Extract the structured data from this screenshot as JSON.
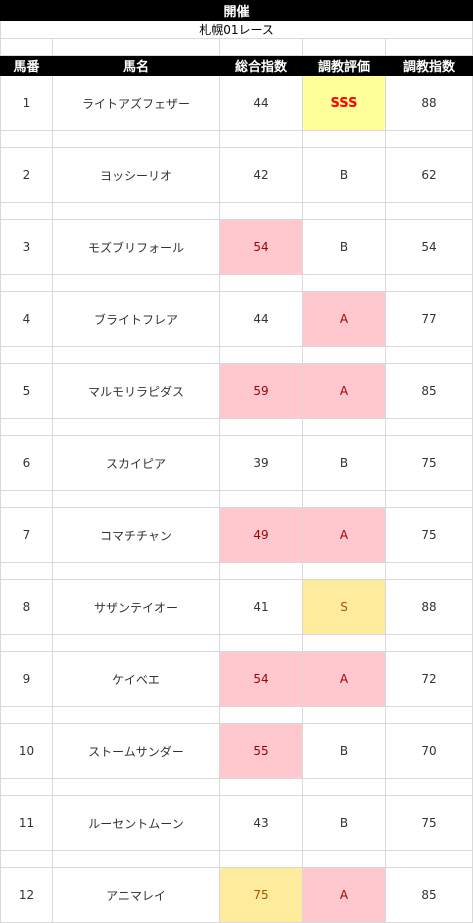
{
  "title": "開催",
  "race": "札幌01レース",
  "headers": [
    "馬番",
    "馬名",
    "総合指数",
    "調教評価",
    "調教指数"
  ],
  "rows": [
    {
      "num": "1",
      "name": "ライトアズフェザー",
      "total": "44",
      "eval": "SSS",
      "train": "88"
    },
    {
      "num": "2",
      "name": "ヨッシーリオ",
      "total": "42",
      "eval": "B",
      "train": "62"
    },
    {
      "num": "3",
      "name": "モズブリフォール",
      "total": "54",
      "eval": "B",
      "train": "54"
    },
    {
      "num": "4",
      "name": "ブライトフレア",
      "total": "44",
      "eval": "A",
      "train": "77"
    },
    {
      "num": "5",
      "name": "マルモリラピダス",
      "total": "59",
      "eval": "A",
      "train": "85"
    },
    {
      "num": "6",
      "name": "スカイピア",
      "total": "39",
      "eval": "B",
      "train": "75"
    },
    {
      "num": "7",
      "name": "コマチチャン",
      "total": "49",
      "eval": "A",
      "train": "75"
    },
    {
      "num": "8",
      "name": "サザンテイオー",
      "total": "41",
      "eval": "S",
      "train": "88"
    },
    {
      "num": "9",
      "name": "ケイベエ",
      "total": "54",
      "eval": "A",
      "train": "72"
    },
    {
      "num": "10",
      "name": "ストームサンダー",
      "total": "55",
      "eval": "B",
      "train": "70"
    },
    {
      "num": "11",
      "name": "ルーセントムーン",
      "total": "43",
      "eval": "B",
      "train": "75"
    },
    {
      "num": "12",
      "name": "アニマレイ",
      "total": "75",
      "eval": "A",
      "train": "85"
    }
  ],
  "colors": {
    "highlight_pink": "#ffc7ce",
    "highlight_yellow": "#ffeb9c",
    "sss_fill": "#ffff99",
    "sss_text": "#ff0000"
  }
}
